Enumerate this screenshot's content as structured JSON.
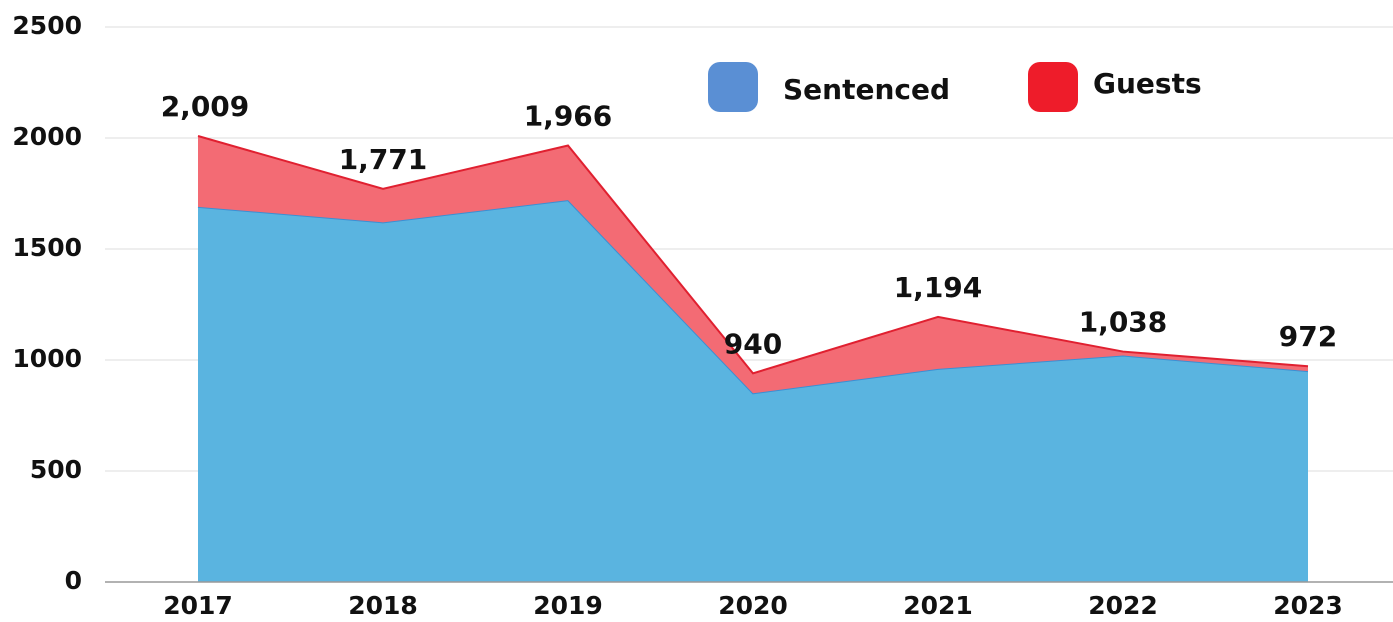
{
  "chart_data": {
    "type": "stacked_area",
    "categories": [
      "2017",
      "2018",
      "2019",
      "2020",
      "2021",
      "2022",
      "2023"
    ],
    "series": [
      {
        "name": "Sentenced",
        "color": "#5a8fd4",
        "fill": "#5ab4e0",
        "stroke": "#3a8fd4",
        "values": [
          1690,
          1620,
          1720,
          850,
          960,
          1020,
          950
        ]
      },
      {
        "name": "Guests",
        "color": "#ee1c2a",
        "fill": "#f36b74",
        "stroke": "#e02030",
        "values": [
          319,
          151,
          246,
          90,
          234,
          18,
          22
        ]
      }
    ],
    "totals": [
      2009,
      1771,
      1966,
      940,
      1194,
      1038,
      972
    ],
    "total_labels": [
      "2,009",
      "1,771",
      "1,966",
      "940",
      "1,194",
      "1,038",
      "972"
    ],
    "ylim": [
      0,
      2500
    ],
    "yticks": [
      0,
      500,
      1000,
      1500,
      2000,
      2500
    ],
    "grid": true
  }
}
